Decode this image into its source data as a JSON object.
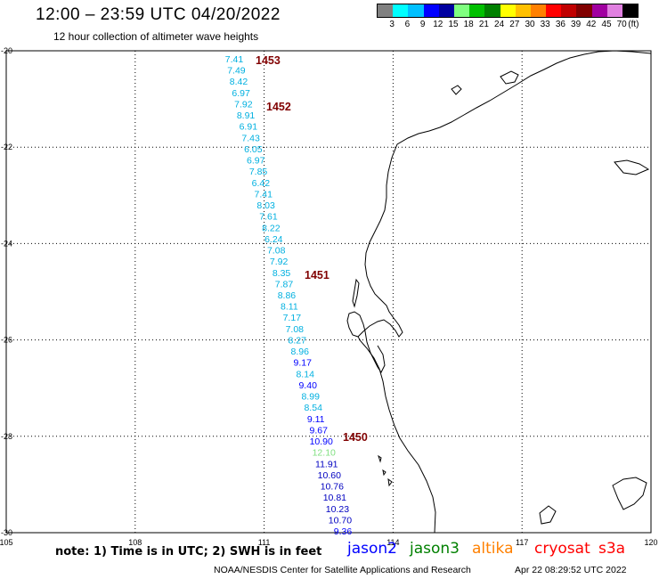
{
  "header": {
    "title": "12:00 – 23:59 UTC 04/20/2022",
    "subtitle": "12 hour collection of altimeter wave heights"
  },
  "scale": {
    "colors": [
      "#808080",
      "#00ffff",
      "#00c0ff",
      "#0000ff",
      "#0000a0",
      "#80ff80",
      "#00c000",
      "#008000",
      "#ffff00",
      "#ffc000",
      "#ff8000",
      "#ff0000",
      "#c00000",
      "#800000",
      "#a000a0",
      "#e080e0",
      "#000000"
    ],
    "labels": [
      "3",
      "6",
      "9",
      "12",
      "15",
      "18",
      "21",
      "24",
      "27",
      "30",
      "33",
      "36",
      "39",
      "42",
      "45",
      "70",
      "(ft)"
    ]
  },
  "axes": {
    "x_ticks": [
      "105",
      "108",
      "111",
      "114",
      "117",
      "120"
    ],
    "y_ticks": [
      "-20",
      "-22",
      "-24",
      "-26",
      "-28",
      "-30"
    ]
  },
  "passes": [
    {
      "id": "1453",
      "color": "#800000"
    },
    {
      "id": "1452",
      "color": "#800000"
    },
    {
      "id": "1451",
      "color": "#800000"
    },
    {
      "id": "1450",
      "color": "#800000"
    }
  ],
  "wave_heights": [
    {
      "v": "7.41",
      "c": "#00b0e0"
    },
    {
      "v": "7.49",
      "c": "#00b0e0"
    },
    {
      "v": "8.42",
      "c": "#00b0e0"
    },
    {
      "v": "6.97",
      "c": "#00b0e0"
    },
    {
      "v": "7.92",
      "c": "#00b0e0"
    },
    {
      "v": "8.91",
      "c": "#00b0e0"
    },
    {
      "v": "6.91",
      "c": "#00b0e0"
    },
    {
      "v": "7.43",
      "c": "#00b0e0"
    },
    {
      "v": "6.05",
      "c": "#00b0e0"
    },
    {
      "v": "6.97",
      "c": "#00b0e0"
    },
    {
      "v": "7.85",
      "c": "#00b0e0"
    },
    {
      "v": "6.42",
      "c": "#00b0e0"
    },
    {
      "v": "7.41",
      "c": "#00b0e0"
    },
    {
      "v": "8.03",
      "c": "#00b0e0"
    },
    {
      "v": "7.61",
      "c": "#00b0e0"
    },
    {
      "v": "8.22",
      "c": "#00b0e0"
    },
    {
      "v": "6.24",
      "c": "#00b0e0"
    },
    {
      "v": "7.08",
      "c": "#00b0e0"
    },
    {
      "v": "7.92",
      "c": "#00b0e0"
    },
    {
      "v": "8.35",
      "c": "#00b0e0"
    },
    {
      "v": "7.87",
      "c": "#00b0e0"
    },
    {
      "v": "8.86",
      "c": "#00b0e0"
    },
    {
      "v": "8.11",
      "c": "#00b0e0"
    },
    {
      "v": "7.17",
      "c": "#00b0e0"
    },
    {
      "v": "7.08",
      "c": "#00b0e0"
    },
    {
      "v": "8.27",
      "c": "#00b0e0"
    },
    {
      "v": "8.96",
      "c": "#00b0e0"
    },
    {
      "v": "9.17",
      "c": "#0000ff"
    },
    {
      "v": "8.14",
      "c": "#00b0e0"
    },
    {
      "v": "9.40",
      "c": "#0000ff"
    },
    {
      "v": "8.99",
      "c": "#00b0e0"
    },
    {
      "v": "8.54",
      "c": "#00b0e0"
    },
    {
      "v": "9.11",
      "c": "#0000ff"
    },
    {
      "v": "9.67",
      "c": "#0000ff"
    },
    {
      "v": "10.90",
      "c": "#0000ff"
    },
    {
      "v": "12.10",
      "c": "#80e080"
    },
    {
      "v": "11.91",
      "c": "#0000c0"
    },
    {
      "v": "10.60",
      "c": "#0000c0"
    },
    {
      "v": "10.76",
      "c": "#0000c0"
    },
    {
      "v": "10.81",
      "c": "#0000c0"
    },
    {
      "v": "10.23",
      "c": "#0000c0"
    },
    {
      "v": "10.70",
      "c": "#0000c0"
    },
    {
      "v": "9.36",
      "c": "#0000ff"
    }
  ],
  "footer": {
    "note": "note: 1) Time is in UTC; 2) SWH is in feet",
    "satellites": [
      {
        "name": "jason2",
        "color": "#0000ff"
      },
      {
        "name": "jason3",
        "color": "#008000"
      },
      {
        "name": "altika",
        "color": "#ff8000"
      },
      {
        "name": "cryosat",
        "color": "#ff0000"
      },
      {
        "name": "s3a",
        "color": "#ff0000"
      }
    ],
    "credit": "NOAA/NESDIS Center for Satellite Applications and Research",
    "timestamp": "Apr 22 08:29:52 UTC 2022"
  }
}
